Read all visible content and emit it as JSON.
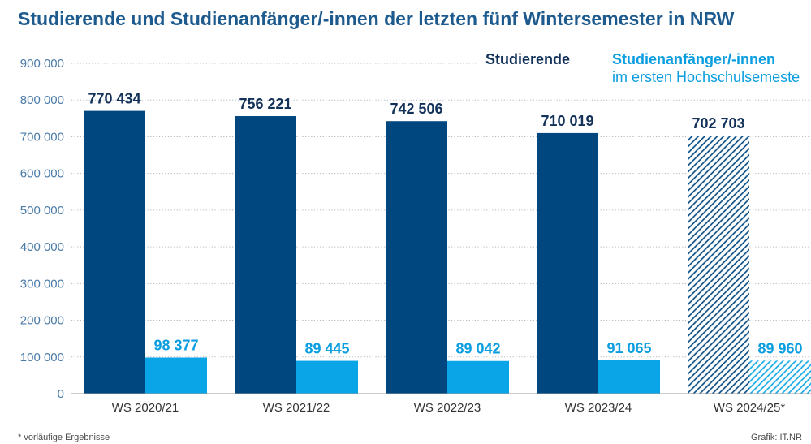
{
  "colors": {
    "title": "#1d5a8e",
    "tick_text": "#4a7aa8",
    "category_text": "#333333",
    "grid": "#aeb8c1",
    "axis": "#9a9a9a",
    "footer_text": "#4a4a4a",
    "background": "#ffffff"
  },
  "chart_data": {
    "type": "bar",
    "title": "Studierende und Studienanfänger/-innen der letzten fünf Wintersemester in NRW",
    "categories": [
      "WS 2020/21",
      "WS 2021/22",
      "WS 2022/23",
      "WS 2023/24",
      "WS 2024/25*"
    ],
    "preliminary": [
      false,
      false,
      false,
      false,
      true
    ],
    "ylim": [
      0,
      900000
    ],
    "yticks": [
      0,
      100000,
      200000,
      300000,
      400000,
      500000,
      600000,
      700000,
      800000,
      900000
    ],
    "ytick_labels": [
      "0",
      "100 000",
      "200 000",
      "300 000",
      "400 000",
      "500 000",
      "600 000",
      "700 000",
      "800 000",
      "900 000"
    ],
    "grid": true,
    "legend_position": "top-right",
    "series": [
      {
        "name": "Studierende",
        "color": "#00467f",
        "label_color": "#13325a",
        "values": [
          770434,
          756221,
          742506,
          710019,
          702703
        ],
        "value_labels": [
          "770 434",
          "756 221",
          "742 506",
          "710 019",
          "702 703"
        ]
      },
      {
        "name": "Studienanfänger/-innen",
        "name_line2": "im ersten Hochschulsemeste",
        "color": "#0aa5e6",
        "label_color": "#0a9ee0",
        "values": [
          98377,
          89445,
          89042,
          91065,
          89960
        ],
        "value_labels": [
          "98 377",
          "89 445",
          "89 042",
          "91 065",
          "89 960"
        ]
      }
    ]
  },
  "footer": {
    "footnote": "* vorläufige Ergebnisse",
    "source": "Grafik: IT.NR"
  }
}
